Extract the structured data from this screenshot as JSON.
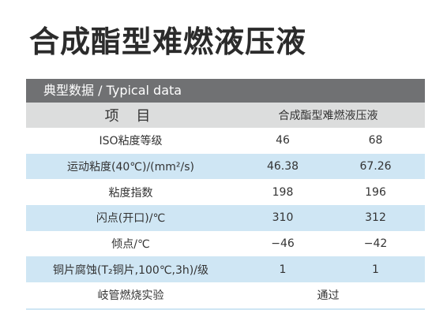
{
  "header": {
    "title": "合成酯型难燃液压液"
  },
  "section": {
    "title": "典型数据 /  Typical data"
  },
  "table": {
    "header": [
      "项 目",
      "合成酯型难燃液压液"
    ],
    "rows": [
      [
        "ISO粘度等级",
        "46",
        "68"
      ],
      [
        "运动粘度(40℃)/(mm²/s)",
        "46.38",
        "67.26"
      ],
      [
        "粘度指数",
        "198",
        "196"
      ],
      [
        "闪点(开口)/℃",
        "310",
        "312"
      ],
      [
        "倾点/℃",
        "−46",
        "−42"
      ],
      [
        "铜片腐蚀(T₂铜片,100℃,3h)/级",
        "1",
        "1"
      ],
      [
        "岐管燃烧实验",
        "通过"
      ]
    ]
  }
}
